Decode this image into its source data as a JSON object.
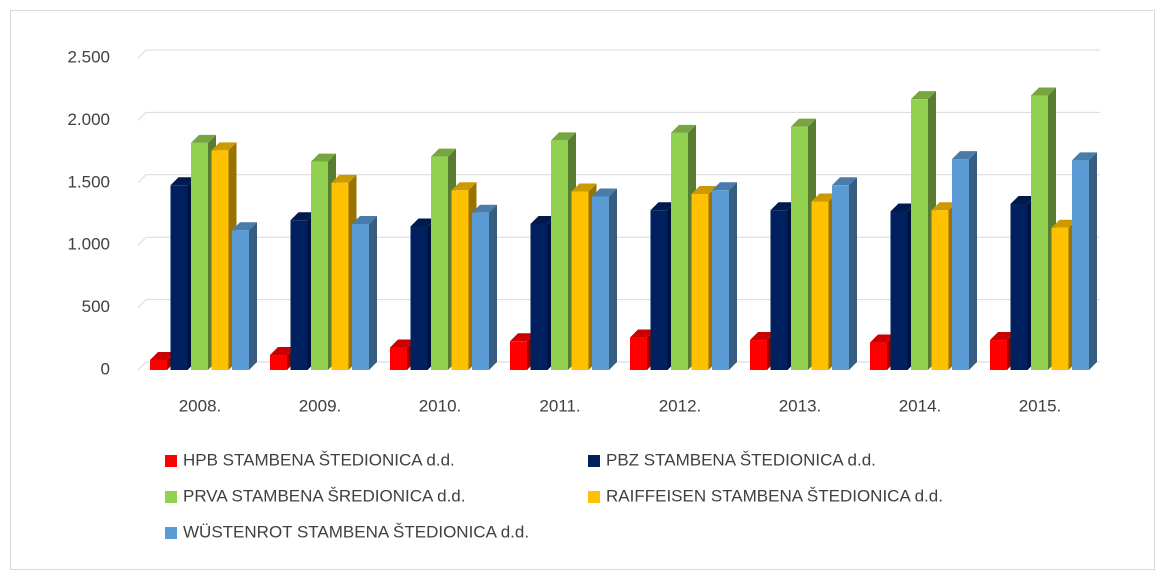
{
  "chart_data": {
    "type": "bar3d",
    "categories": [
      "2008.",
      "2009.",
      "2010.",
      "2011.",
      "2012.",
      "2013.",
      "2014.",
      "2015."
    ],
    "series": [
      {
        "name": "HPB STAMBENA ŠTEDIONICA d.d.",
        "color": "#ff0000",
        "values": [
          80,
          120,
          180,
          230,
          260,
          240,
          220,
          240
        ]
      },
      {
        "name": "PBZ STAMBENA ŠTEDIONICA d.d.",
        "color": "#002060",
        "values": [
          1480,
          1200,
          1150,
          1170,
          1280,
          1280,
          1270,
          1330
        ]
      },
      {
        "name": "PRVA STAMBENA ŠREDIONICA d.d.",
        "color": "#92d050",
        "values": [
          1820,
          1670,
          1710,
          1840,
          1900,
          1950,
          2170,
          2200
        ]
      },
      {
        "name": "RAIFFEISEN STAMBENA ŠTEDIONICA d.d.",
        "color": "#ffc000",
        "values": [
          1760,
          1500,
          1440,
          1430,
          1410,
          1350,
          1280,
          1140
        ]
      },
      {
        "name": "WÜSTENROT STAMBENA ŠTEDIONICA d.d.",
        "color": "#5b9bd5",
        "values": [
          1120,
          1170,
          1260,
          1390,
          1440,
          1480,
          1690,
          1680
        ]
      }
    ],
    "ylim": [
      0,
      2500
    ],
    "yticks": [
      0,
      500,
      {
        "value": 1000,
        "label": "1.000"
      },
      {
        "value": 1500,
        "label": "1.500"
      },
      {
        "value": 2000,
        "label": "2.000"
      },
      {
        "value": 2500,
        "label": "2.500"
      }
    ],
    "grid": true,
    "legend": "bottom"
  }
}
